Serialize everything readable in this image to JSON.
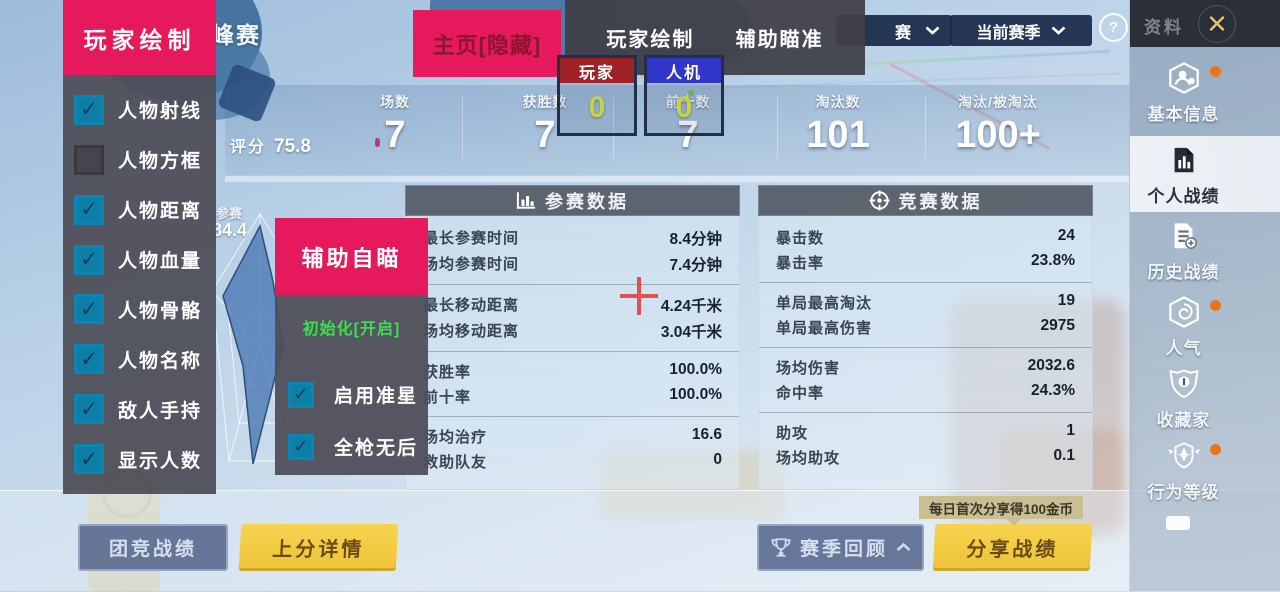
{
  "header": {
    "title": "峰赛",
    "score_label": "评分",
    "score": "75.8",
    "stats": [
      {
        "label": "场数",
        "value": "7"
      },
      {
        "label": "获胜数",
        "value": "7"
      },
      {
        "label": "前十数",
        "value": "7"
      },
      {
        "label": "淘汰数",
        "value": "101"
      },
      {
        "label": "淘汰/被淘汰",
        "value": "100+"
      }
    ],
    "season_dropdown": "赛",
    "season_current": "当前赛季",
    "help": "?"
  },
  "radar": {
    "label": "参赛",
    "value": "84.4"
  },
  "panels": [
    {
      "title": "参赛数据",
      "icon": "bar-chart",
      "groups": [
        [
          {
            "label": "最长参赛时间",
            "value": "8.4分钟"
          },
          {
            "label": "场均参赛时间",
            "value": "7.4分钟"
          }
        ],
        [
          {
            "label": "最长移动距离",
            "value": "4.24千米"
          },
          {
            "label": "场均移动距离",
            "value": "3.04千米"
          }
        ],
        [
          {
            "label": "获胜率",
            "value": "100.0%"
          },
          {
            "label": "前十率",
            "value": "100.0%"
          }
        ],
        [
          {
            "label": "场均治疗",
            "value": "16.6"
          },
          {
            "label": "救助队友",
            "value": "0"
          }
        ]
      ]
    },
    {
      "title": "竞赛数据",
      "icon": "target",
      "groups": [
        [
          {
            "label": "暴击数",
            "value": "24"
          },
          {
            "label": "暴击率",
            "value": "23.8%"
          }
        ],
        [
          {
            "label": "单局最高淘汰",
            "value": "19"
          },
          {
            "label": "单局最高伤害",
            "value": "2975"
          }
        ],
        [
          {
            "label": "场均伤害",
            "value": "2032.6"
          },
          {
            "label": "命中率",
            "value": "24.3%"
          }
        ],
        [
          {
            "label": "助攻",
            "value": "1"
          },
          {
            "label": "场均助攻",
            "value": "0.1"
          }
        ]
      ]
    }
  ],
  "sidebar": {
    "header": "资料",
    "close": "✕",
    "items": [
      {
        "label": "基本信息",
        "icon": "profile",
        "badge": true,
        "selected": false
      },
      {
        "label": "个人战绩",
        "icon": "personal-stats",
        "badge": false,
        "selected": true
      },
      {
        "label": "历史战绩",
        "icon": "history",
        "badge": false,
        "selected": false
      },
      {
        "label": "人气",
        "icon": "popularity",
        "badge": true,
        "selected": false
      },
      {
        "label": "收藏家",
        "icon": "collector",
        "badge": false,
        "selected": false
      },
      {
        "label": "行为等级",
        "icon": "conduct",
        "badge": true,
        "selected": false
      }
    ]
  },
  "footer": {
    "team_button": "团竞战绩",
    "rank_button": "上分详情",
    "season_review_button": "赛季回顾",
    "share_button": "分享战绩",
    "tooltip": "每日首次分享得100金币"
  },
  "overlays": {
    "player_draw": {
      "title": "玩家绘制",
      "items": [
        {
          "label": "人物射线",
          "checked": true
        },
        {
          "label": "人物方框",
          "checked": false
        },
        {
          "label": "人物距离",
          "checked": true
        },
        {
          "label": "人物血量",
          "checked": true
        },
        {
          "label": "人物骨骼",
          "checked": true
        },
        {
          "label": "人物名称",
          "checked": true
        },
        {
          "label": "敌人手持",
          "checked": true
        },
        {
          "label": "显示人数",
          "checked": true
        }
      ]
    },
    "home_button": "主页[隐藏]",
    "menu_tabs": [
      "玩家绘制",
      "辅助瞄准"
    ],
    "counters": [
      {
        "label": "玩家",
        "value": "0"
      },
      {
        "label": "人机",
        "value": "0"
      }
    ],
    "aim": {
      "title": "辅助自瞄",
      "status": "初始化[开启]",
      "items": [
        {
          "label": "启用准星",
          "checked": true
        },
        {
          "label": "全枪无后",
          "checked": true
        }
      ]
    }
  },
  "colors": {
    "accent_pink": "#e6195c",
    "checkbox_teal": "#0d7ea8",
    "counter_yellow": "#c3d540",
    "badge_orange": "#e5761e",
    "button_yellow": "#f1c93e",
    "status_green": "#3ae14e",
    "crosshair_red": "#e0504f"
  }
}
